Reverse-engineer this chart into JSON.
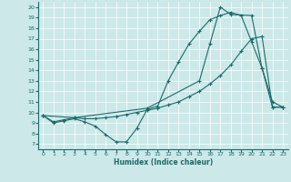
{
  "xlabel": "Humidex (Indice chaleur)",
  "background_color": "#cce8e8",
  "line_color": "#1a6b6b",
  "xlim": [
    -0.5,
    23.5
  ],
  "ylim": [
    6.5,
    20.5
  ],
  "xticks": [
    0,
    1,
    2,
    3,
    4,
    5,
    6,
    7,
    8,
    9,
    10,
    11,
    12,
    13,
    14,
    15,
    16,
    17,
    18,
    19,
    20,
    21,
    22,
    23
  ],
  "yticks": [
    7,
    8,
    9,
    10,
    11,
    12,
    13,
    14,
    15,
    16,
    17,
    18,
    19,
    20
  ],
  "line1_x": [
    0,
    1,
    2,
    3,
    4,
    5,
    6,
    7,
    8,
    9,
    10,
    11,
    12,
    13,
    14,
    15,
    16,
    17,
    18,
    19,
    20,
    21,
    22,
    23
  ],
  "line1_y": [
    9.7,
    9.0,
    9.2,
    9.4,
    9.1,
    8.7,
    7.9,
    7.2,
    7.2,
    8.5,
    10.3,
    10.6,
    13.0,
    14.8,
    16.5,
    17.7,
    18.8,
    19.2,
    19.5,
    19.2,
    16.7,
    14.2,
    11.0,
    10.5
  ],
  "line2_x": [
    0,
    1,
    2,
    3,
    4,
    5,
    6,
    7,
    8,
    9,
    10,
    11,
    12,
    13,
    14,
    15,
    16,
    17,
    18,
    19,
    20,
    21,
    22,
    23
  ],
  "line2_y": [
    9.7,
    9.1,
    9.3,
    9.5,
    9.4,
    9.4,
    9.5,
    9.6,
    9.8,
    10.0,
    10.2,
    10.4,
    10.7,
    11.0,
    11.5,
    12.0,
    12.7,
    13.5,
    14.5,
    15.8,
    17.0,
    17.2,
    10.5,
    10.5
  ],
  "line3_x": [
    0,
    3,
    10,
    15,
    16,
    17,
    18,
    20,
    21,
    22,
    23
  ],
  "line3_y": [
    9.7,
    9.5,
    10.4,
    13.0,
    16.5,
    20.0,
    19.3,
    19.2,
    14.2,
    10.5,
    10.5
  ]
}
